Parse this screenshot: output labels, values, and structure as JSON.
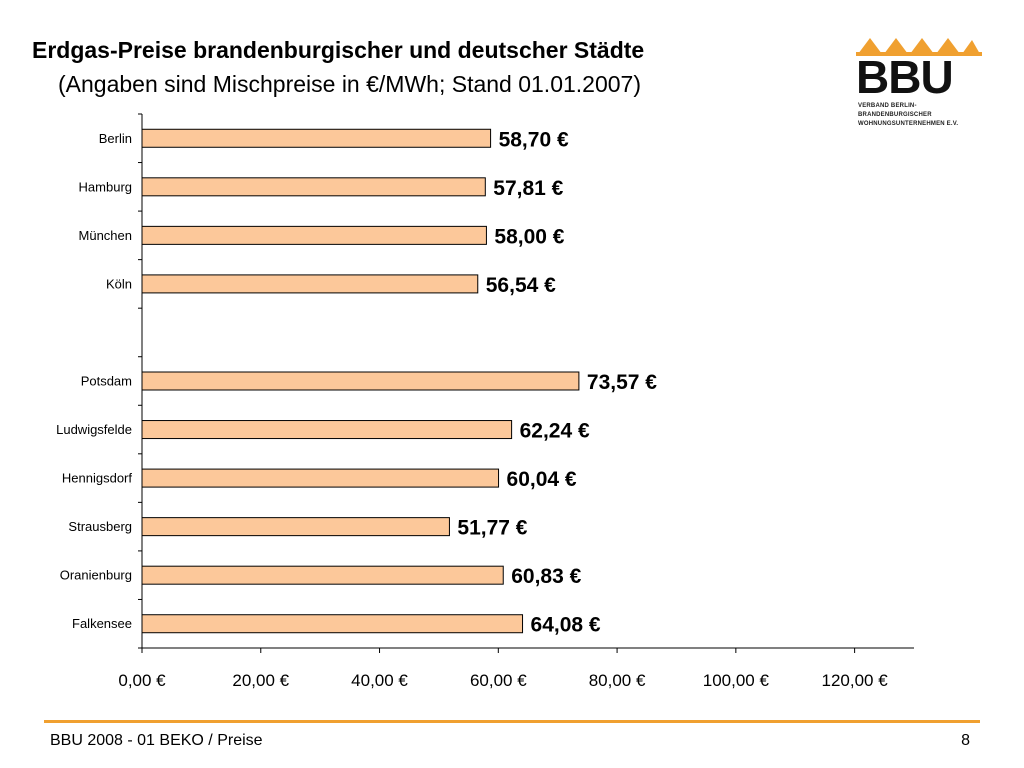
{
  "header": {
    "title": "Erdgas-Preise brandenburgischer und deutscher Städte",
    "subtitle": "(Angaben sind Mischpreise in €/MWh; Stand 01.01.2007)"
  },
  "logo": {
    "text": "BBU",
    "subtitle_line1": "VERBAND BERLIN- BRANDENBURGISCHER",
    "subtitle_line2": "WOHNUNGSUNTERNEHMEN E.V.",
    "color": "#f0a030"
  },
  "chart_data": {
    "type": "bar",
    "orientation": "horizontal",
    "categories": [
      "Berlin",
      "Hamburg",
      "München",
      "Köln",
      "",
      "Potsdam",
      "Ludwigsfelde",
      "Hennigsdorf",
      "Strausberg",
      "Oranienburg",
      "Falkensee"
    ],
    "values": [
      58.7,
      57.81,
      58.0,
      56.54,
      null,
      73.57,
      62.24,
      60.04,
      51.77,
      60.83,
      64.08
    ],
    "value_labels": [
      "58,70 €",
      "57,81 €",
      "58,00 €",
      "56,54 €",
      "",
      "73,57 €",
      "62,24 €",
      "60,04 €",
      "51,77 €",
      "60,83 €",
      "64,08 €"
    ],
    "xlim": [
      0,
      130
    ],
    "xticks": [
      0,
      20,
      40,
      60,
      80,
      100,
      120
    ],
    "xtick_labels": [
      "0,00 €",
      "20,00 €",
      "40,00 €",
      "60,00 €",
      "80,00 €",
      "100,00 €",
      "120,00 €"
    ],
    "bar_color": "#fcc89a",
    "bar_edge_color": "#000000",
    "grid": false
  },
  "footer": {
    "left": "BBU 2008 - 01 BEKO / Preise",
    "page_number": "8",
    "line_color": "#f0a030"
  }
}
